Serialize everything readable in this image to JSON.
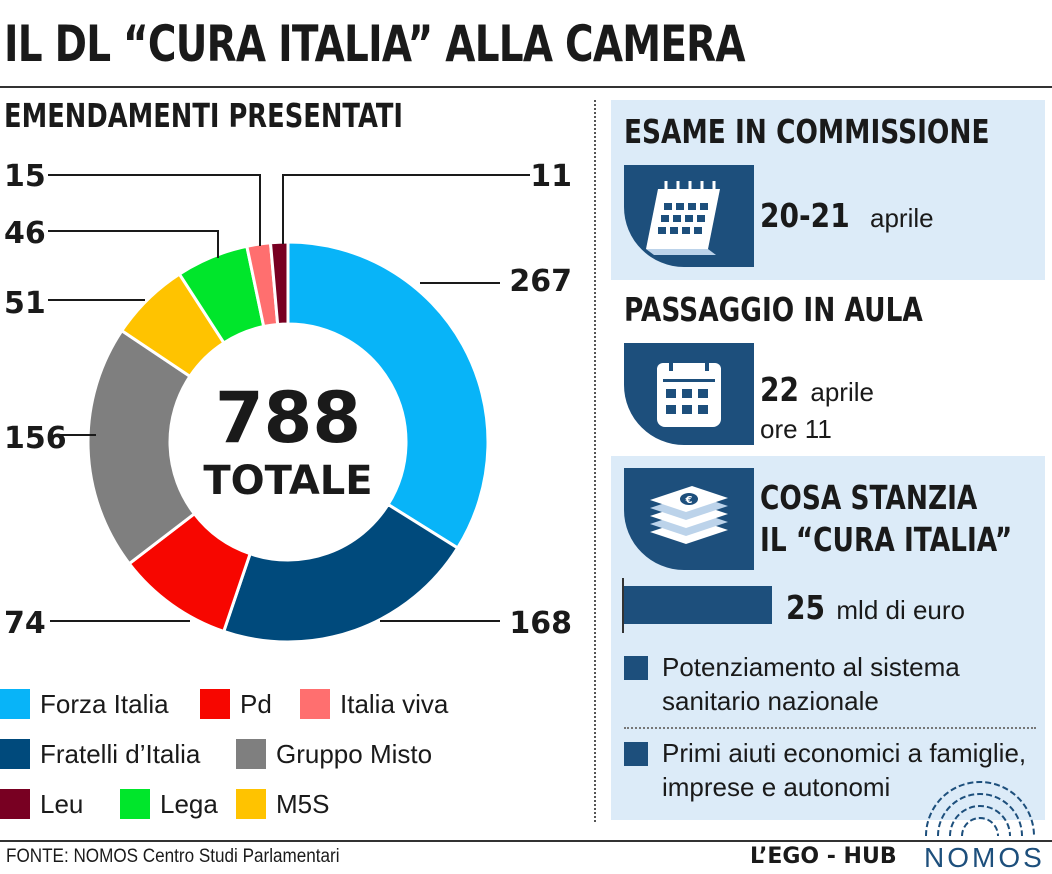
{
  "title": "IL DL “CURA ITALIA” ALLA CAMERA",
  "subtitle": "EMENDAMENTI PRESENTATI",
  "colors": {
    "accent": "#1d4f7c",
    "panel": "#dcebf8"
  },
  "chart_data": {
    "type": "pie",
    "donut": true,
    "total_value": "788",
    "total_label": "TOTALE",
    "slices": [
      {
        "name": "Forza Italia",
        "value": 267,
        "color": "#08b4f8"
      },
      {
        "name": "Fratelli d’Italia",
        "value": 168,
        "color": "#004a7c"
      },
      {
        "name": "Pd",
        "value": 74,
        "color": "#f70600"
      },
      {
        "name": "Gruppo Misto",
        "value": 156,
        "color": "#7f7f7f"
      },
      {
        "name": "M5S",
        "value": 51,
        "color": "#ffc300"
      },
      {
        "name": "Lega",
        "value": 46,
        "color": "#00e62b"
      },
      {
        "name": "Italia viva",
        "value": 15,
        "color": "#ff6f6f"
      },
      {
        "name": "Leu",
        "value": 11,
        "color": "#780022"
      }
    ],
    "legend": [
      "Forza Italia",
      "Pd",
      "Italia viva",
      "Fratelli d’Italia",
      "Gruppo Misto",
      "Leu",
      "Lega",
      "M5S"
    ]
  },
  "esame": {
    "title": "ESAME IN COMMISSIONE",
    "date": "20-21",
    "month": "aprile",
    "icon": "desk-calendar-icon"
  },
  "aula": {
    "title": "PASSAGGIO IN AULA",
    "date": "22",
    "month": "aprile",
    "time": "ore 11",
    "icon": "calendar-icon"
  },
  "stanzia": {
    "title_line1": "COSA STANZIA",
    "title_line2": "IL “CURA ITALIA”",
    "amount": "25",
    "unit": "mld di euro",
    "icon": "money-stack-icon",
    "bullets": [
      "Potenziamento al sistema sanitario nazionale",
      "Primi aiuti economici a famiglie, imprese e autonomi"
    ]
  },
  "footer": {
    "source": "FONTE: NOMOS Centro Studi Parlamentari",
    "publisher": "L’EGO - HUB",
    "logo_text": "NOMOS"
  }
}
